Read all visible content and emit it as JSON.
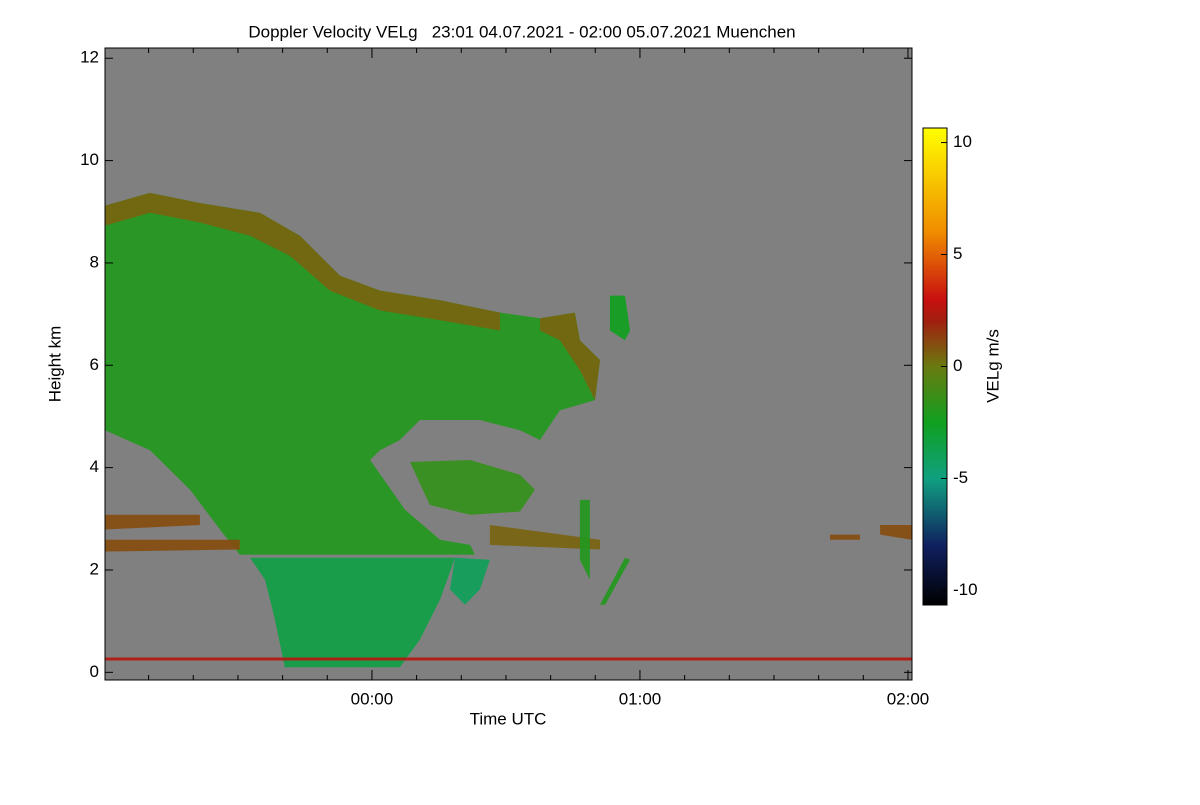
{
  "chart_data": {
    "type": "heatmap-regions",
    "title": "Doppler Velocity VELg   23:01 04.07.2021 - 02:00 05.07.2021 Muenchen",
    "xlabel": "Time UTC",
    "ylabel": "Height km",
    "colorbar_label": "VELg m/s",
    "background": "#808080",
    "xlim": [
      -0.996,
      2.015
    ],
    "ylim": [
      -0.15,
      12.2
    ],
    "xticks": [
      {
        "value": 0,
        "label": "00:00"
      },
      {
        "value": 1,
        "label": "01:00"
      },
      {
        "value": 2,
        "label": "02:00"
      }
    ],
    "xminorticks": [
      -0.8333,
      -0.6667,
      -0.5,
      -0.3333,
      -0.1667,
      0.1667,
      0.3333,
      0.5,
      0.6667,
      0.8333,
      1.1667,
      1.3333,
      1.5,
      1.6667,
      1.8333
    ],
    "yticks": [
      0,
      2,
      4,
      6,
      8,
      10,
      12
    ],
    "zlim": [
      -10.65,
      10.65
    ],
    "zticks": [
      -10,
      -5,
      0,
      5,
      10
    ],
    "colorscale": [
      [
        -10.65,
        "#000000"
      ],
      [
        -8,
        "#102060"
      ],
      [
        -5,
        "#10a080"
      ],
      [
        -2.5,
        "#10a020"
      ],
      [
        0,
        "#6a7a10"
      ],
      [
        2,
        "#a02010"
      ],
      [
        3,
        "#c81010"
      ],
      [
        6,
        "#f08c00"
      ],
      [
        10.65,
        "#ffff00"
      ]
    ],
    "regions": [
      {
        "value": -2,
        "points": [
          [
            -0.996,
            9.12
          ],
          [
            -0.828,
            9.37
          ],
          [
            -0.642,
            9.17
          ],
          [
            -0.418,
            8.98
          ],
          [
            -0.269,
            8.53
          ],
          [
            -0.119,
            7.75
          ],
          [
            0.03,
            7.46
          ],
          [
            0.254,
            7.27
          ],
          [
            0.478,
            7.03
          ],
          [
            0.627,
            6.92
          ],
          [
            0.757,
            7.03
          ],
          [
            0.776,
            6.49
          ],
          [
            0.851,
            6.1
          ],
          [
            0.832,
            5.32
          ],
          [
            0.701,
            5.12
          ],
          [
            0.627,
            4.54
          ],
          [
            0.552,
            4.73
          ],
          [
            0.403,
            4.93
          ],
          [
            0.179,
            4.93
          ],
          [
            0.104,
            4.54
          ],
          [
            0.03,
            4.34
          ],
          [
            -0.007,
            4.15
          ],
          [
            0.123,
            3.18
          ],
          [
            0.254,
            2.59
          ],
          [
            0.366,
            2.49
          ],
          [
            0.384,
            2.3
          ],
          [
            -0.493,
            2.3
          ],
          [
            -0.567,
            2.79
          ],
          [
            -0.679,
            3.57
          ],
          [
            -0.828,
            4.34
          ],
          [
            -0.94,
            4.6
          ],
          [
            -0.996,
            4.73
          ]
        ]
      },
      {
        "value": 0.5,
        "points": [
          [
            -0.996,
            9.12
          ],
          [
            -0.828,
            9.37
          ],
          [
            -0.642,
            9.17
          ],
          [
            -0.418,
            8.98
          ],
          [
            -0.269,
            8.53
          ],
          [
            -0.119,
            7.75
          ],
          [
            0.03,
            7.46
          ],
          [
            0.254,
            7.27
          ],
          [
            0.478,
            7.03
          ],
          [
            0.478,
            6.68
          ],
          [
            0.254,
            6.88
          ],
          [
            0.03,
            7.07
          ],
          [
            -0.157,
            7.46
          ],
          [
            -0.306,
            8.14
          ],
          [
            -0.455,
            8.53
          ],
          [
            -0.642,
            8.79
          ],
          [
            -0.828,
            8.98
          ],
          [
            -0.996,
            8.73
          ]
        ]
      },
      {
        "value": 0.5,
        "points": [
          [
            0.627,
            6.92
          ],
          [
            0.757,
            7.03
          ],
          [
            0.776,
            6.49
          ],
          [
            0.851,
            6.1
          ],
          [
            0.832,
            5.32
          ],
          [
            0.776,
            5.9
          ],
          [
            0.701,
            6.49
          ],
          [
            0.627,
            6.68
          ]
        ]
      },
      {
        "value": -3.5,
        "points": [
          [
            -0.455,
            2.24
          ],
          [
            0.31,
            2.24
          ],
          [
            0.254,
            1.42
          ],
          [
            0.179,
            0.64
          ],
          [
            0.104,
            0.1
          ],
          [
            -0.325,
            0.1
          ],
          [
            -0.362,
            1.03
          ],
          [
            -0.399,
            1.81
          ]
        ]
      },
      {
        "value": -1.5,
        "points": [
          [
            0.142,
            4.11
          ],
          [
            0.366,
            4.15
          ],
          [
            0.552,
            3.86
          ],
          [
            0.608,
            3.57
          ],
          [
            0.552,
            3.14
          ],
          [
            0.366,
            3.08
          ],
          [
            0.216,
            3.27
          ]
        ]
      },
      {
        "value": -4,
        "points": [
          [
            0.31,
            2.24
          ],
          [
            0.44,
            2.2
          ],
          [
            0.403,
            1.62
          ],
          [
            0.347,
            1.32
          ],
          [
            0.291,
            1.62
          ]
        ]
      },
      {
        "value": 1,
        "points": [
          [
            -0.996,
            3.08
          ],
          [
            -0.642,
            3.08
          ],
          [
            -0.642,
            2.88
          ],
          [
            -0.996,
            2.79
          ]
        ]
      },
      {
        "value": 1,
        "points": [
          [
            -0.996,
            2.59
          ],
          [
            -0.493,
            2.59
          ],
          [
            -0.493,
            2.4
          ],
          [
            -0.996,
            2.36
          ]
        ]
      },
      {
        "value": 0.5,
        "points": [
          [
            0.44,
            2.88
          ],
          [
            0.851,
            2.59
          ],
          [
            0.851,
            2.4
          ],
          [
            0.44,
            2.49
          ]
        ]
      },
      {
        "value": 1,
        "points": [
          [
            1.709,
            2.69
          ],
          [
            1.821,
            2.69
          ],
          [
            1.821,
            2.59
          ],
          [
            1.709,
            2.59
          ]
        ]
      },
      {
        "value": 1,
        "points": [
          [
            1.896,
            2.88
          ],
          [
            2.015,
            2.88
          ],
          [
            2.015,
            2.59
          ],
          [
            1.896,
            2.69
          ]
        ]
      },
      {
        "value": -2.5,
        "points": [
          [
            0.888,
            7.36
          ],
          [
            0.944,
            7.36
          ],
          [
            0.963,
            6.68
          ],
          [
            0.944,
            6.49
          ],
          [
            0.888,
            6.68
          ]
        ]
      },
      {
        "value": -2,
        "points": [
          [
            0.776,
            3.37
          ],
          [
            0.813,
            3.37
          ],
          [
            0.813,
            1.81
          ],
          [
            0.776,
            2.2
          ]
        ]
      },
      {
        "value": -2,
        "points": [
          [
            0.851,
            1.32
          ],
          [
            0.944,
            2.24
          ],
          [
            0.963,
            2.2
          ],
          [
            0.87,
            1.32
          ]
        ]
      },
      {
        "value": 2.5,
        "points": [
          [
            -0.996,
            0.29
          ],
          [
            2.015,
            0.29
          ],
          [
            2.015,
            0.23
          ],
          [
            -0.996,
            0.23
          ]
        ]
      }
    ]
  }
}
